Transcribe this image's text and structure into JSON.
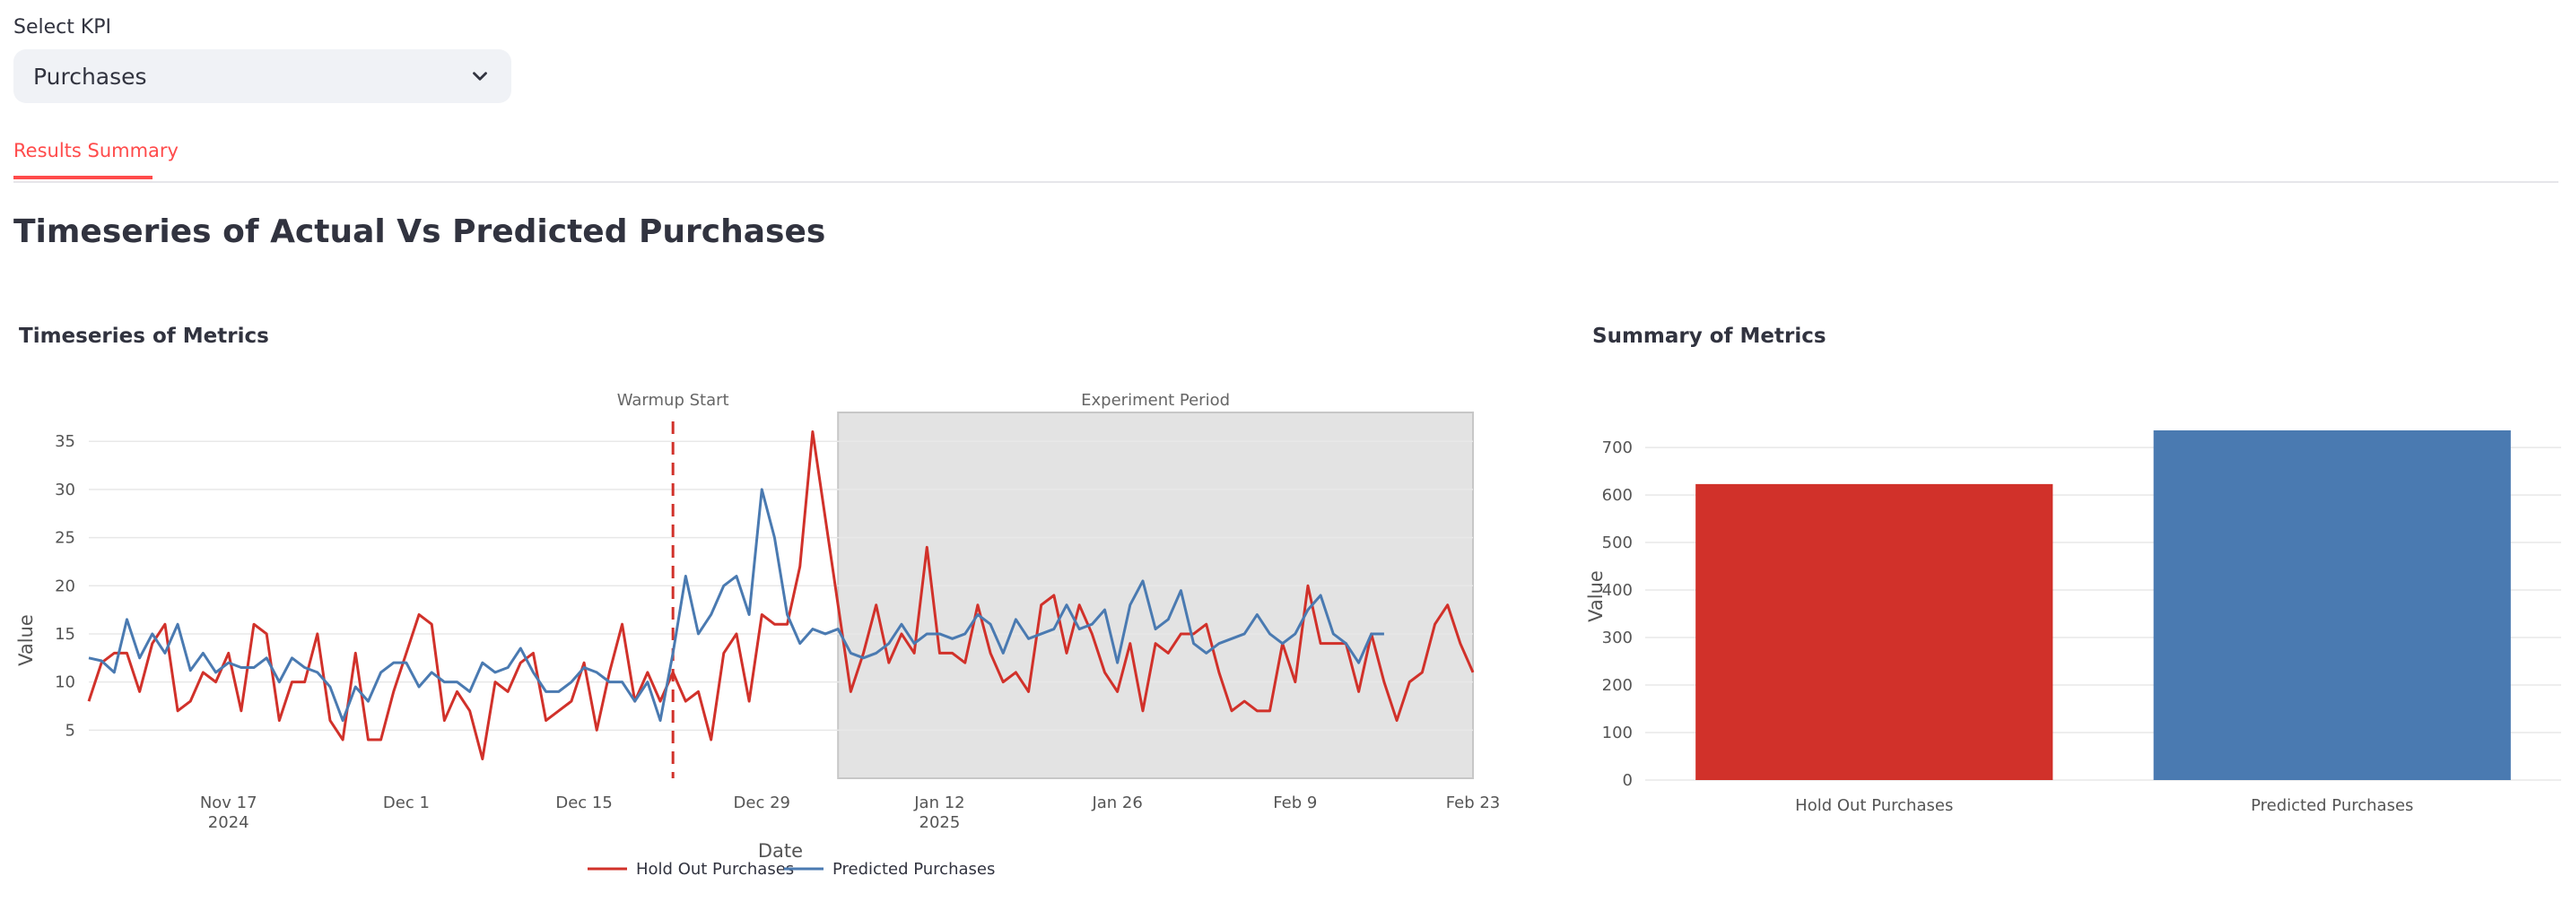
{
  "kpi": {
    "label": "Select KPI",
    "value": "Purchases"
  },
  "tabs": [
    {
      "label": "Results Summary",
      "active": true
    }
  ],
  "page_title": "Timeseries of Actual Vs Predicted Purchases",
  "colors": {
    "holdout": "#d1312a",
    "predicted": "#4a7ab1",
    "accent": "#ff4b4b",
    "experiment_band": "#e3e3e3"
  },
  "chart_data": [
    {
      "type": "line",
      "title": "Timeseries of Metrics",
      "xlabel": "Date",
      "ylabel": "Value",
      "x_start": "2024-11-06",
      "x_ticks": [
        {
          "date": "2024-11-17",
          "label": "Nov 17",
          "sublabel": "2024"
        },
        {
          "date": "2024-12-01",
          "label": "Dec 1",
          "sublabel": ""
        },
        {
          "date": "2024-12-15",
          "label": "Dec 15",
          "sublabel": ""
        },
        {
          "date": "2024-12-29",
          "label": "Dec 29",
          "sublabel": ""
        },
        {
          "date": "2025-01-12",
          "label": "Jan 12",
          "sublabel": "2025"
        },
        {
          "date": "2025-01-26",
          "label": "Jan 26",
          "sublabel": ""
        },
        {
          "date": "2025-02-09",
          "label": "Feb 9",
          "sublabel": ""
        },
        {
          "date": "2025-02-23",
          "label": "Feb 23",
          "sublabel": ""
        }
      ],
      "y_ticks": [
        5,
        10,
        15,
        20,
        25,
        30,
        35
      ],
      "ylim": [
        0,
        38
      ],
      "xlim": [
        "2024-11-06",
        "2025-02-23"
      ],
      "annotations": [
        {
          "type": "vline",
          "date": "2024-12-22",
          "label": "Warmup Start"
        },
        {
          "type": "band",
          "start": "2025-01-04",
          "end": "2025-02-23",
          "label": "Experiment Period"
        }
      ],
      "legend": "bottom",
      "series": [
        {
          "name": "Hold Out Purchases",
          "values": [
            8,
            12,
            13,
            13,
            9,
            14,
            16,
            7,
            8,
            11,
            10,
            13,
            7,
            16,
            15,
            6,
            10,
            10,
            15,
            6,
            4,
            13,
            4,
            4,
            9,
            13,
            17,
            16,
            6,
            9,
            7,
            2,
            10,
            9,
            12,
            13,
            6,
            7,
            8,
            12,
            5,
            11,
            16,
            8,
            11,
            8,
            11,
            8,
            9,
            4,
            13,
            15,
            8,
            17,
            16,
            16,
            22,
            36,
            27,
            18,
            9,
            13,
            18,
            12,
            15,
            13,
            24,
            13,
            13,
            12,
            18,
            13,
            10,
            11,
            9,
            18,
            19,
            13,
            18,
            15,
            11,
            9,
            14,
            7,
            14,
            13,
            15,
            15,
            16,
            11,
            7,
            8,
            7,
            7,
            14,
            10,
            20,
            14,
            14,
            14,
            9,
            15,
            10,
            6,
            10,
            11,
            16,
            18,
            14,
            11
          ]
        },
        {
          "name": "Predicted Purchases",
          "values": [
            12.5,
            12.2,
            11,
            16.5,
            12.5,
            15,
            13,
            16,
            11.2,
            13,
            11,
            12,
            11.5,
            11.5,
            12.5,
            10,
            12.5,
            11.5,
            11,
            9.5,
            6,
            9.5,
            8,
            11,
            12,
            12,
            9.5,
            11,
            10,
            10,
            9,
            12,
            11,
            11.5,
            13.5,
            11,
            9,
            9,
            10,
            11.5,
            11,
            10,
            10,
            8,
            10,
            6,
            13,
            21,
            15,
            17,
            20,
            21,
            17,
            30,
            25,
            17,
            14,
            15.5,
            15,
            15.5,
            13,
            12.5,
            13,
            14,
            16,
            14,
            15,
            15,
            14.5,
            15,
            17,
            16,
            13,
            16.5,
            14.5,
            15,
            15.5,
            18,
            15.5,
            16,
            17.5,
            12,
            18,
            20.5,
            15.5,
            16.5,
            19.5,
            14,
            13,
            14,
            14.5,
            15,
            17,
            15,
            14,
            15,
            17.5,
            19,
            15,
            14,
            12,
            15,
            15
          ]
        }
      ]
    },
    {
      "type": "bar",
      "title": "Summary of Metrics",
      "xlabel": "",
      "ylabel": "Value",
      "categories": [
        "Hold Out Purchases",
        "Predicted Purchases"
      ],
      "values": [
        623,
        736
      ],
      "y_ticks": [
        0,
        100,
        200,
        300,
        400,
        500,
        600,
        700
      ],
      "ylim": [
        0,
        736
      ]
    }
  ]
}
